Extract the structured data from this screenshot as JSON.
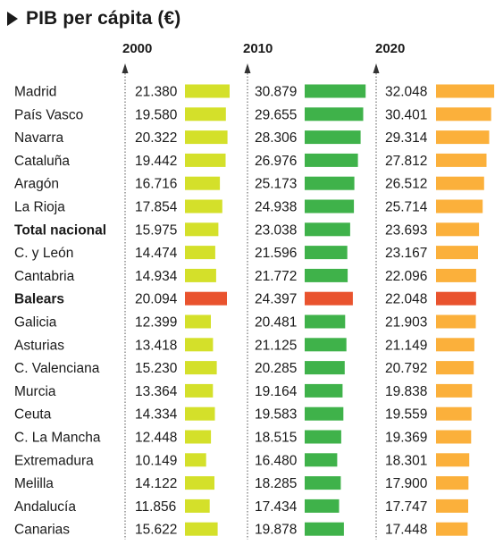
{
  "title": "PIB per cápita (€)",
  "chart_data": {
    "type": "bar",
    "title": "PIB per cápita (€)",
    "years": [
      "2000",
      "2010",
      "2020"
    ],
    "colors": {
      "2000": "#d4e02a",
      "2010": "#3fb24a",
      "2020": "#fbb03b",
      "highlight": "#e9532e"
    },
    "highlight_region": "Balears",
    "bold_regions": [
      "Total nacional",
      "Balears"
    ],
    "categories": [
      "Madrid",
      "País Vasco",
      "Navarra",
      "Cataluña",
      "Aragón",
      "La Rioja",
      "Total nacional",
      "C. y León",
      "Cantabria",
      "Balears",
      "Galicia",
      "Asturias",
      "C. Valenciana",
      "Murcia",
      "Ceuta",
      "C. La Mancha",
      "Extremadura",
      "Melilla",
      "Andalucía",
      "Canarias"
    ],
    "series": [
      {
        "name": "2000",
        "values": [
          21380,
          19580,
          20322,
          19442,
          16716,
          17854,
          15975,
          14474,
          14934,
          20094,
          12399,
          13418,
          15230,
          13364,
          14334,
          12448,
          10149,
          14122,
          11856,
          15622
        ],
        "labels": [
          "21.380",
          "19.580",
          "20.322",
          "19.442",
          "16.716",
          "17.854",
          "15.975",
          "14.474",
          "14.934",
          "20.094",
          "12.399",
          "13.418",
          "15.230",
          "13.364",
          "14.334",
          "12.448",
          "10.149",
          "14.122",
          "11.856",
          "15.622"
        ]
      },
      {
        "name": "2010",
        "values": [
          30879,
          29655,
          28306,
          26976,
          25173,
          24938,
          23038,
          21596,
          21772,
          24397,
          20481,
          21125,
          20285,
          19164,
          19583,
          18515,
          16480,
          18285,
          17434,
          19878
        ],
        "labels": [
          "30.879",
          "29.655",
          "28.306",
          "26.976",
          "25.173",
          "24.938",
          "23.038",
          "21.596",
          "21.772",
          "24.397",
          "20.481",
          "21.125",
          "20.285",
          "19.164",
          "19.583",
          "18.515",
          "16.480",
          "18.285",
          "17.434",
          "19.878"
        ]
      },
      {
        "name": "2020",
        "values": [
          32048,
          30401,
          29314,
          27812,
          26512,
          25714,
          23693,
          23167,
          22096,
          22048,
          21903,
          21149,
          20792,
          19838,
          19559,
          19369,
          18301,
          17900,
          17747,
          17448
        ],
        "labels": [
          "32.048",
          "30.401",
          "29.314",
          "27.812",
          "26.512",
          "25.714",
          "23.693",
          "23.167",
          "22.096",
          "22.048",
          "21.903",
          "21.149",
          "20.792",
          "19.838",
          "19.559",
          "19.369",
          "18.301",
          "17.900",
          "17.747",
          "17.448"
        ]
      }
    ]
  }
}
